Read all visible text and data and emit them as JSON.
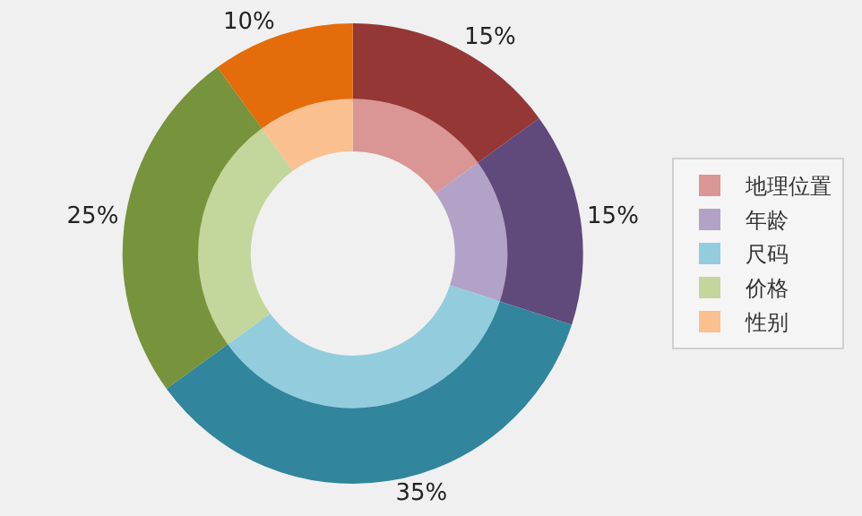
{
  "chart_data": {
    "type": "donut",
    "categories": [
      "地理位置",
      "年龄",
      "尺码",
      "价格",
      "性别"
    ],
    "series": [
      {
        "values": [
          15,
          15,
          35,
          25,
          10
        ],
        "colors": [
          "#953735",
          "#604a7b",
          "#31859c",
          "#77933c",
          "#e46c0a"
        ],
        "value_labels": [
          "15%",
          "15%",
          "35%",
          "25%",
          "10%"
        ]
      },
      {
        "values": [
          15,
          15,
          35,
          25,
          10
        ],
        "colors": [
          "#d99694",
          "#b3a2c7",
          "#93cddd",
          "#c3d69b",
          "#fac090"
        ]
      }
    ],
    "legend": "right"
  }
}
